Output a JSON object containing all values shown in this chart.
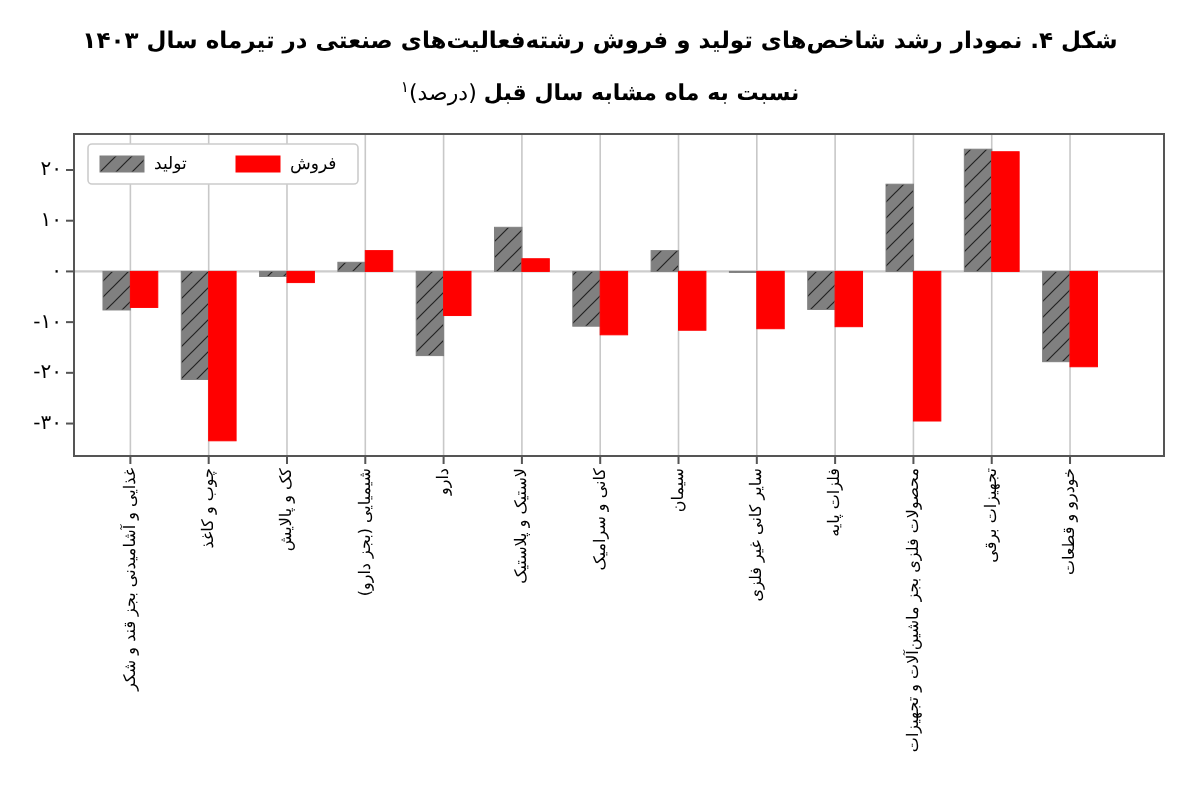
{
  "chart_data": {
    "type": "bar",
    "title": "شکل ۴. نمودار رشد شاخص‌های تولید و فروش رشته‌فعالیت‌های صنعتی در تیرماه سال ۱۴۰۳",
    "subtitle": "**نسبت به ماه مشابه سال قبل** (درصد)$^{۱}$",
    "categories": [
      "غذایی و آشامیدنی بجز قند و شکر",
      "چوب و کاغذ",
      "کک و پالایش",
      "شیمیایی (بجز دارو)",
      "دارو",
      "لاستیک و پلاستیک",
      "کانی و سرامیک",
      "سیمان",
      "سایر کانی غیر فلزی",
      "فلزات پایه",
      "محصولات فلزی بجز ماشین‌آلات و تجهیزات",
      "تجهیزات برقی",
      "خودرو و قطعات"
    ],
    "series": [
      {
        "name": "تولید",
        "color": "#808080",
        "values": [
          -7.6,
          -21.3,
          -1.0,
          1.8,
          -16.6,
          8.7,
          -10.8,
          4.1,
          -0.2,
          -7.5,
          17.2,
          24.1,
          -17.8
        ]
      },
      {
        "name": "فروش",
        "color": "#ff0000",
        "values": [
          -7.1,
          -33.4,
          -2.2,
          4.1,
          -8.7,
          2.5,
          -12.5,
          -11.6,
          -11.3,
          -10.9,
          -29.5,
          23.6,
          -18.8
        ]
      }
    ],
    "ylim": [
      -36.4,
      27.1
    ],
    "yticks": [
      {
        "value": -30,
        "label": "-۳۰"
      },
      {
        "value": -20,
        "label": "-۲۰"
      },
      {
        "value": -10,
        "label": "-۱۰"
      },
      {
        "value": 0,
        "label": "۰"
      },
      {
        "value": 10,
        "label": "۱۰"
      },
      {
        "value": 20,
        "label": "۲۰"
      }
    ],
    "grid": "x",
    "legend": "top left",
    "ref_lines": [
      {
        "axis": "y",
        "value": 0,
        "color": "#cccccc"
      }
    ]
  }
}
